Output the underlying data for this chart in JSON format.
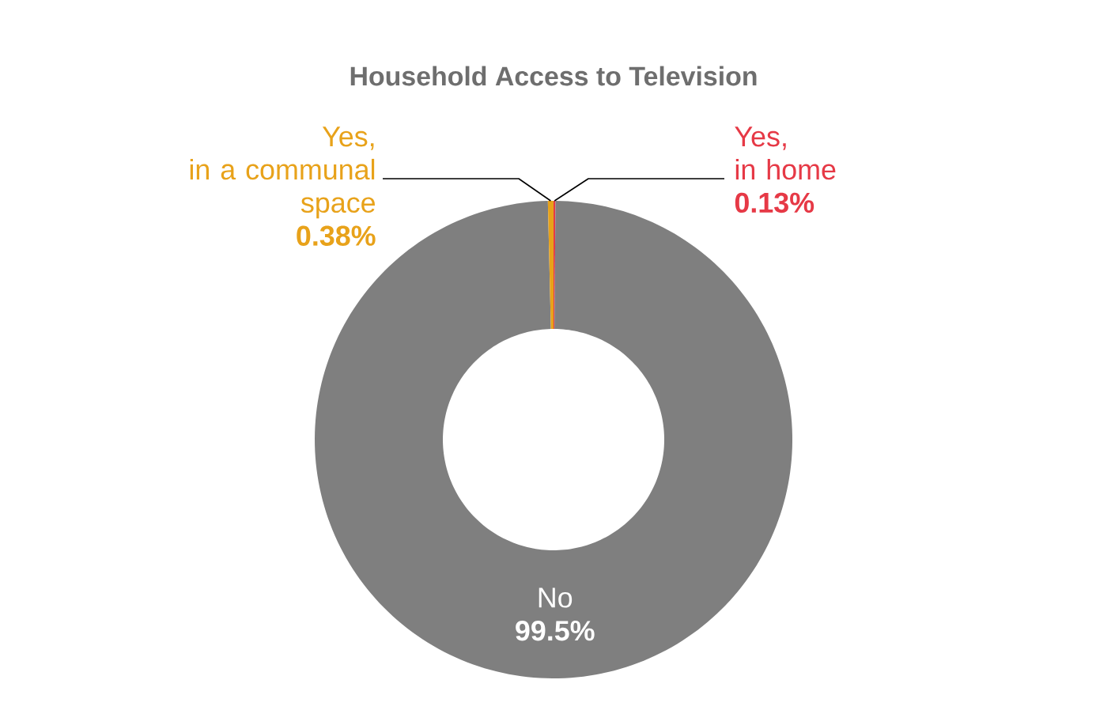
{
  "chart_data": {
    "type": "donut",
    "title": "Household Access to Television",
    "categories": [
      "Yes, in home",
      "No",
      "Yes, in a communal space"
    ],
    "values": [
      0.13,
      99.5,
      0.38
    ],
    "colors": [
      "#e63946",
      "#7f7f7f",
      "#e8a21a"
    ],
    "value_labels": [
      "0.13%",
      "99.5%",
      "0.38%"
    ]
  }
}
